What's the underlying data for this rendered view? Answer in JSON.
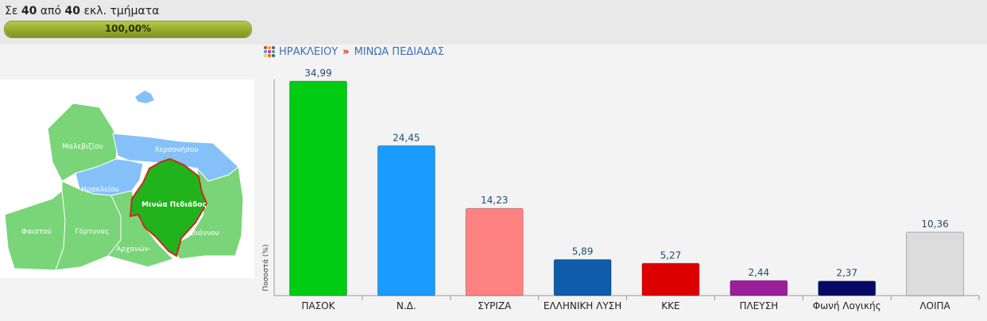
{
  "header": {
    "prefix": "Σε",
    "reported": "40",
    "middle": "από",
    "total": "40",
    "suffix": "εκλ. τμήματα",
    "progress_percent": 100,
    "progress_label": "100,00%",
    "progress_color": "#93a82a"
  },
  "breadcrumb": {
    "level1": "ΗΡΑΚΛΕΙΟΥ",
    "separator": "»",
    "level2": "ΜΙΝΩΑ ΠΕΔΙΑΔΑΣ"
  },
  "map": {
    "labels": {
      "malevizi": "Μαλεβιζίου",
      "chersonisos": "Χερσονήσου",
      "irakleio": "Ηρακλείου",
      "minoa": "Μινώα Πεδιάδος",
      "faistos": "Φαιστού",
      "gortyna": "Γόρτυνας",
      "viannos": "Βιάννου",
      "archanes": "Αρχανών-"
    },
    "colors": {
      "municipality": "#79d577",
      "neighbor": "#85c1f8",
      "selected": "#20b31c",
      "selected_border": "#cc2a1a"
    }
  },
  "chart_data": {
    "type": "bar",
    "ylabel": "Ποσοστά (%)",
    "ylim": [
      0,
      35
    ],
    "categories": [
      "ΠΑΣΟΚ",
      "Ν.Δ.",
      "ΣΥΡΙΖΑ",
      "ΕΛΛΗΝΙΚΗ ΛΥΣΗ",
      "ΚΚΕ",
      "ΠΛΕΥΣΗ",
      "Φωνή Λογικής",
      "ΛΟΙΠΑ"
    ],
    "values": [
      34.99,
      24.45,
      14.23,
      5.89,
      5.27,
      2.44,
      2.37,
      10.36
    ],
    "value_labels": [
      "34,99",
      "24,45",
      "14,23",
      "5,89",
      "5,27",
      "2,44",
      "2,37",
      "10,36"
    ],
    "colors": [
      "#00cc14",
      "#1a9cff",
      "#ff8282",
      "#0e5caa",
      "#dd0000",
      "#9b1e9b",
      "#050a66",
      "#dcdcdc"
    ],
    "grid": false,
    "legend": "none"
  }
}
